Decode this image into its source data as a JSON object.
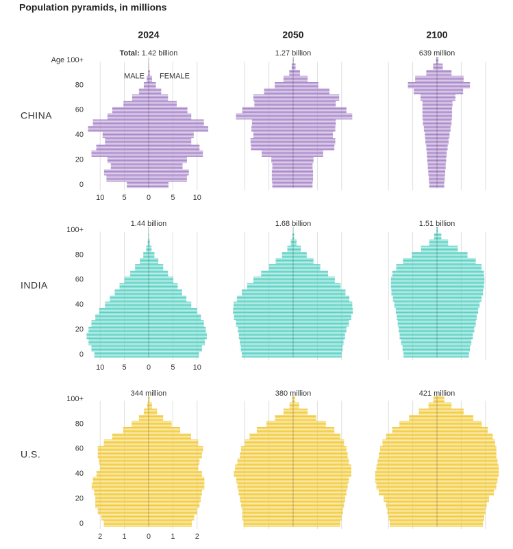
{
  "title": "Population pyramids, in millions",
  "columns": [
    "2024",
    "2050",
    "2100"
  ],
  "chart_data": [
    {
      "type": "pyramid",
      "label": "CHINA",
      "color": "#ab8acb",
      "ages": [
        0,
        5,
        10,
        15,
        20,
        25,
        30,
        35,
        40,
        45,
        50,
        55,
        60,
        65,
        70,
        75,
        80,
        85,
        90,
        95,
        100
      ],
      "ylim": [
        0,
        103
      ],
      "yticks": [
        0,
        20,
        40,
        60,
        80,
        {
          "value": 100,
          "label": "Age 100+"
        }
      ],
      "xlim": [
        -13,
        13
      ],
      "xticks": [
        {
          "value": -10,
          "label": "10"
        },
        {
          "value": -5,
          "label": "5"
        },
        0,
        5,
        10
      ],
      "annotations": [
        "MALE",
        "FEMALE"
      ],
      "panels": [
        {
          "total_prefix": "Total:",
          "total": "1.42 billion",
          "male": [
            4.5,
            8.7,
            9.2,
            7.8,
            8.5,
            11.8,
            10.8,
            9.0,
            9.5,
            12.5,
            11.5,
            8.5,
            7.5,
            5.2,
            3.4,
            2.0,
            1.0,
            0.4,
            0.1,
            0.03,
            0.01
          ],
          "female": [
            4.1,
            7.9,
            8.3,
            7.0,
            7.9,
            11.2,
            10.5,
            8.8,
            9.3,
            12.3,
            11.4,
            8.8,
            8.0,
            5.8,
            4.0,
            2.6,
            1.5,
            0.7,
            0.25,
            0.08,
            0.02
          ]
        },
        {
          "total": "1.27 billion",
          "male": [
            4.3,
            4.4,
            4.4,
            4.3,
            4.5,
            6.5,
            8.7,
            8.8,
            8.2,
            8.6,
            8.5,
            11.8,
            10.5,
            8.0,
            8.2,
            6.0,
            3.8,
            2.0,
            0.8,
            0.3,
            0.05
          ],
          "female": [
            4.0,
            4.1,
            4.1,
            4.0,
            4.2,
            6.2,
            8.5,
            8.7,
            8.2,
            8.7,
            8.8,
            12.2,
            11.0,
            8.8,
            9.5,
            7.5,
            5.2,
            3.0,
            1.4,
            0.5,
            0.1
          ]
        },
        {
          "total": "639 million",
          "male": [
            1.6,
            1.7,
            1.8,
            1.9,
            2.0,
            2.1,
            2.2,
            2.4,
            2.5,
            2.7,
            2.9,
            3.0,
            3.0,
            3.0,
            3.4,
            4.8,
            6.0,
            4.5,
            2.2,
            0.8,
            0.2
          ],
          "female": [
            1.5,
            1.6,
            1.7,
            1.8,
            1.9,
            2.0,
            2.2,
            2.4,
            2.6,
            2.8,
            3.0,
            3.1,
            3.1,
            3.2,
            3.8,
            5.4,
            6.8,
            5.5,
            3.0,
            1.2,
            0.3
          ]
        }
      ]
    },
    {
      "type": "pyramid",
      "label": "INDIA",
      "color": "#5dd3c5",
      "ages": [
        0,
        5,
        10,
        15,
        20,
        25,
        30,
        35,
        40,
        45,
        50,
        55,
        60,
        65,
        70,
        75,
        80,
        85,
        90,
        95,
        100
      ],
      "ylim": [
        0,
        103
      ],
      "yticks": [
        0,
        20,
        40,
        60,
        80,
        {
          "value": 100,
          "label": "100+"
        }
      ],
      "xlim": [
        -13,
        13
      ],
      "xticks": [
        {
          "value": -10,
          "label": "10"
        },
        {
          "value": -5,
          "label": "5"
        },
        0,
        5,
        10
      ],
      "panels": [
        {
          "total": "1.44 billion",
          "male": [
            11.2,
            11.8,
            12.4,
            12.8,
            12.4,
            11.8,
            11.0,
            10.2,
            9.0,
            8.0,
            7.0,
            6.0,
            5.0,
            3.8,
            2.8,
            1.8,
            1.1,
            0.5,
            0.2,
            0.06,
            0.02
          ],
          "female": [
            10.4,
            11.0,
            11.6,
            12.0,
            11.8,
            11.4,
            10.8,
            10.0,
            8.8,
            7.8,
            6.9,
            6.0,
            5.1,
            4.0,
            3.0,
            2.0,
            1.2,
            0.6,
            0.25,
            0.08,
            0.02
          ]
        },
        {
          "total": "1.68 billion",
          "male": [
            10.6,
            10.8,
            11.0,
            11.2,
            11.4,
            11.8,
            12.2,
            12.4,
            12.3,
            11.6,
            10.6,
            9.5,
            8.2,
            6.6,
            5.0,
            3.6,
            2.3,
            1.2,
            0.5,
            0.15,
            0.03
          ],
          "female": [
            10.0,
            10.2,
            10.4,
            10.7,
            11.0,
            11.5,
            12.0,
            12.3,
            12.2,
            11.6,
            10.8,
            9.8,
            8.6,
            7.2,
            5.6,
            4.2,
            2.8,
            1.6,
            0.7,
            0.2,
            0.05
          ]
        },
        {
          "total": "1.51 billion",
          "male": [
            6.9,
            7.1,
            7.4,
            7.7,
            7.9,
            8.1,
            8.3,
            8.5,
            8.8,
            9.1,
            9.4,
            9.5,
            9.5,
            9.2,
            8.4,
            7.0,
            5.2,
            3.3,
            1.6,
            0.6,
            0.1
          ],
          "female": [
            6.6,
            6.8,
            7.1,
            7.4,
            7.7,
            8.0,
            8.2,
            8.5,
            8.8,
            9.2,
            9.5,
            9.7,
            9.8,
            9.7,
            9.2,
            8.0,
            6.3,
            4.3,
            2.3,
            0.9,
            0.2
          ]
        }
      ]
    },
    {
      "type": "pyramid",
      "label": "U.S.",
      "color": "#f2cb3d",
      "ages": [
        0,
        5,
        10,
        15,
        20,
        25,
        30,
        35,
        40,
        45,
        50,
        55,
        60,
        65,
        70,
        75,
        80,
        85,
        90,
        95,
        100
      ],
      "ylim": [
        0,
        103
      ],
      "yticks": [
        0,
        20,
        40,
        60,
        80,
        {
          "value": 100,
          "label": "100+"
        }
      ],
      "xlim": [
        -2.6,
        2.6
      ],
      "xticks": [
        {
          "value": -2,
          "label": "2"
        },
        {
          "value": -1,
          "label": "1"
        },
        0,
        1,
        2
      ],
      "panels": [
        {
          "total": "344 million",
          "male": [
            1.85,
            1.95,
            2.1,
            2.2,
            2.2,
            2.25,
            2.35,
            2.3,
            2.15,
            2.0,
            2.05,
            2.1,
            2.1,
            1.85,
            1.5,
            1.05,
            0.7,
            0.4,
            0.2,
            0.06,
            0.02
          ],
          "female": [
            1.78,
            1.88,
            2.0,
            2.1,
            2.15,
            2.2,
            2.3,
            2.3,
            2.2,
            2.05,
            2.1,
            2.2,
            2.25,
            2.05,
            1.75,
            1.3,
            0.95,
            0.6,
            0.35,
            0.14,
            0.04
          ]
        },
        {
          "total": "380 million",
          "male": [
            2.05,
            2.1,
            2.1,
            2.15,
            2.2,
            2.25,
            2.3,
            2.35,
            2.45,
            2.4,
            2.3,
            2.2,
            2.15,
            2.0,
            1.8,
            1.5,
            1.1,
            0.75,
            0.4,
            0.15,
            0.04
          ],
          "female": [
            1.95,
            2.0,
            2.05,
            2.1,
            2.15,
            2.2,
            2.25,
            2.3,
            2.4,
            2.4,
            2.3,
            2.25,
            2.2,
            2.1,
            1.95,
            1.7,
            1.35,
            0.95,
            0.6,
            0.25,
            0.08
          ]
        },
        {
          "total": "421 million",
          "male": [
            1.95,
            2.0,
            2.05,
            2.1,
            2.2,
            2.4,
            2.5,
            2.55,
            2.55,
            2.5,
            2.45,
            2.4,
            2.35,
            2.25,
            2.1,
            1.85,
            1.55,
            1.15,
            0.75,
            0.35,
            0.15
          ],
          "female": [
            1.9,
            1.95,
            2.0,
            2.05,
            2.15,
            2.35,
            2.45,
            2.5,
            2.55,
            2.55,
            2.5,
            2.45,
            2.45,
            2.4,
            2.3,
            2.1,
            1.85,
            1.5,
            1.1,
            0.6,
            0.3
          ]
        }
      ]
    }
  ]
}
